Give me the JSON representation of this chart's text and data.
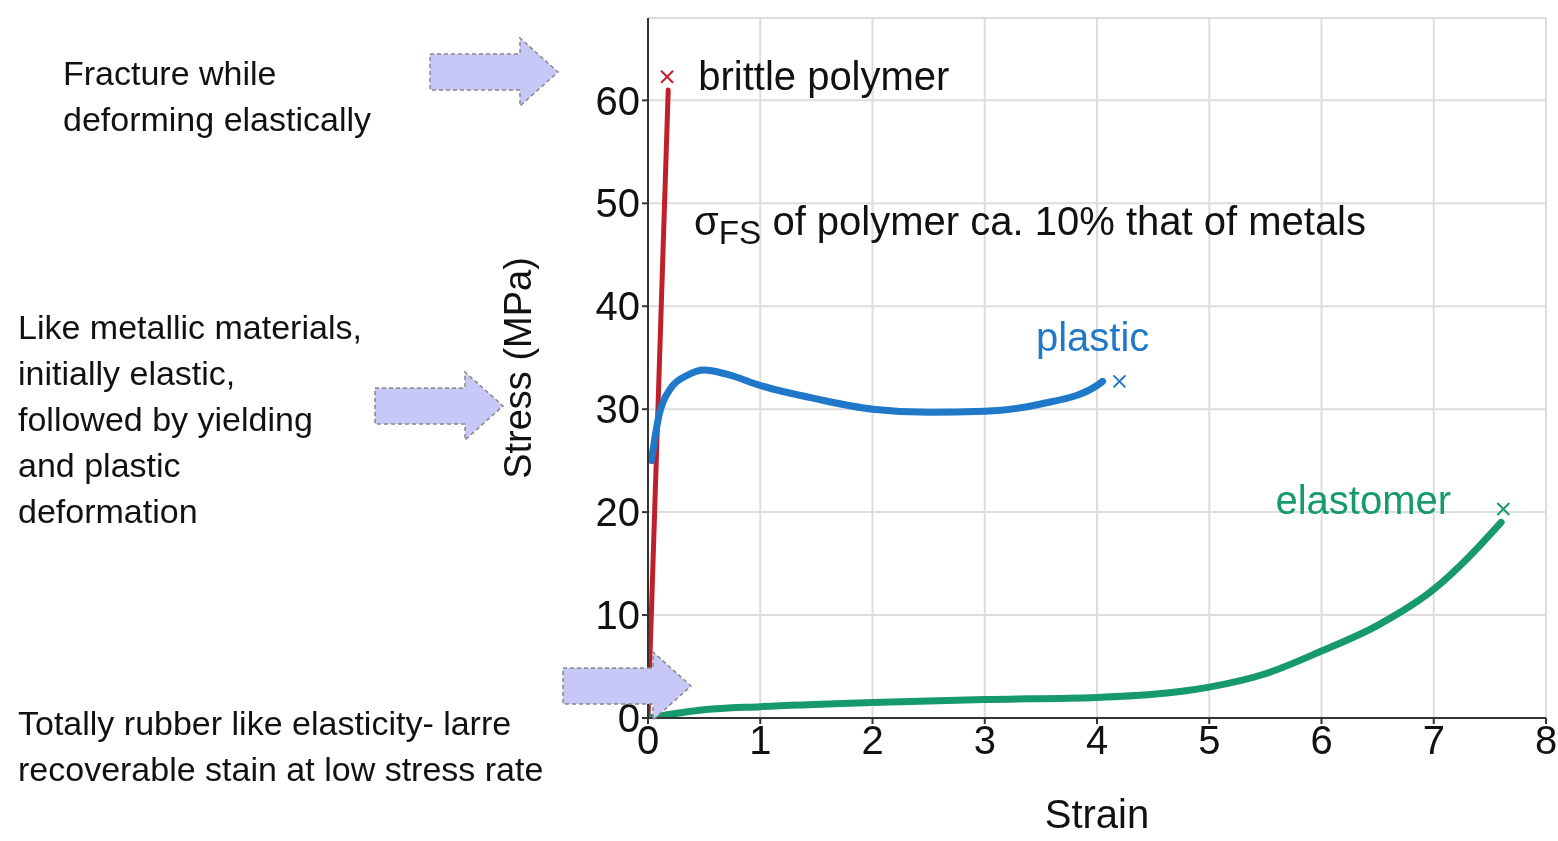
{
  "chart_data": {
    "type": "line",
    "xlabel": "Strain",
    "ylabel": "Stress (MPa)",
    "xlim": [
      0,
      8
    ],
    "xticks": [
      0,
      1,
      2,
      3,
      4,
      5,
      6,
      7,
      8
    ],
    "ylim": [
      0,
      68
    ],
    "yticks": [
      0,
      10,
      20,
      30,
      40,
      50,
      60
    ],
    "grid": true,
    "legend": false,
    "marker": "none",
    "series": [
      {
        "name": "brittle polymer",
        "color": "#c0202a",
        "x": [
          0,
          0.18
        ],
        "values": [
          0,
          61
        ]
      },
      {
        "name": "plastic",
        "color": "#1f78c8",
        "x": [
          0.03,
          0.1,
          0.2,
          0.35,
          0.5,
          0.7,
          1,
          1.5,
          2,
          2.5,
          3,
          3.5,
          4,
          4.05
        ],
        "values": [
          25,
          29.5,
          32,
          33.3,
          33.8,
          33.4,
          32.3,
          31,
          30,
          29.7,
          29.8,
          30.5,
          32.3,
          32.7
        ]
      },
      {
        "name": "elastomer",
        "color": "#179a6b",
        "x": [
          0,
          0.5,
          1,
          2,
          3,
          4,
          4.5,
          5,
          5.5,
          6,
          6.5,
          7,
          7.3,
          7.6
        ],
        "values": [
          0,
          0.8,
          1.1,
          1.5,
          1.8,
          2,
          2.3,
          3,
          4.3,
          6.5,
          9,
          12.5,
          15.5,
          19
        ]
      },
      {
        "type": "scatter",
        "color": "#c0202a",
        "x": [
          0.17
        ],
        "values": [
          62.3
        ],
        "marker": "cross"
      },
      {
        "type": "scatter",
        "color": "#1f78c8",
        "x": [
          4.2
        ],
        "values": [
          32.7
        ],
        "marker": "cross"
      },
      {
        "type": "scatter",
        "color": "#179a6b",
        "x": [
          7.62
        ],
        "values": [
          20.3
        ],
        "marker": "cross"
      }
    ],
    "annotations": [
      "Fracture while deforming elastically",
      "Like metallic materials, initially elastic, followed by yielding and plastic deformation",
      "Totally rubber like elasticity- larre recoverable stain at low stress rate",
      "σ$_{FS}$ of polymer ca. 10% that of metals"
    ]
  }
}
